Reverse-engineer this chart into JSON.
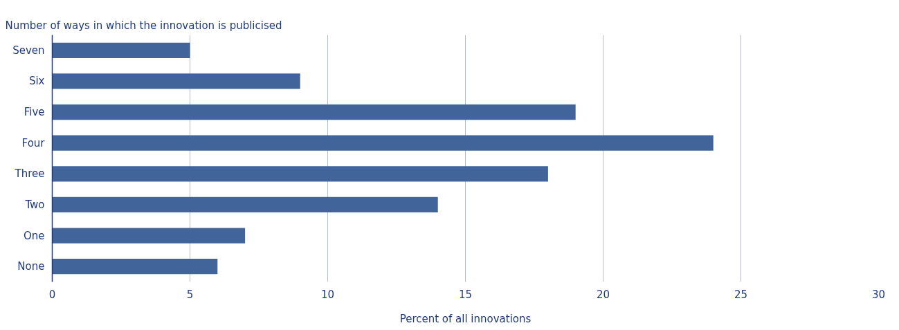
{
  "chart_data": {
    "type": "bar",
    "orientation": "horizontal",
    "title": "Number of ways in which the innovation is publicised",
    "xlabel": "Percent of all innovations",
    "categories": [
      "Seven",
      "Six",
      "Five",
      "Four",
      "Three",
      "Two",
      "One",
      "None"
    ],
    "values": [
      5,
      9,
      19,
      24,
      18,
      14,
      7,
      6
    ],
    "color": "#41649a",
    "xlim": [
      0,
      30
    ],
    "xticks": [
      0,
      5,
      10,
      15,
      20,
      25,
      30
    ],
    "grid": "x"
  }
}
